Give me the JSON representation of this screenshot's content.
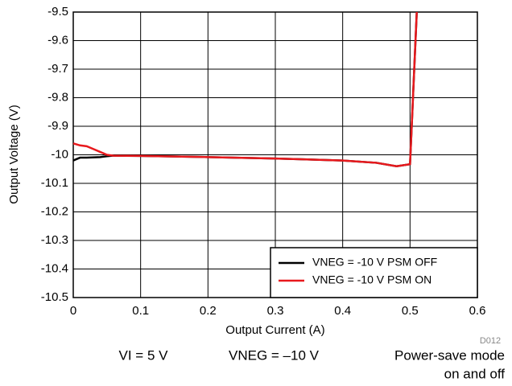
{
  "chart_data": {
    "type": "line",
    "x_label": "Output Current (A)",
    "y_label": "Output Voltage (V)",
    "xlim": [
      0,
      0.6
    ],
    "xticks": [
      0,
      0.1,
      0.2,
      0.3,
      0.4,
      0.5,
      0.6
    ],
    "ylim": [
      -10.5,
      -9.5
    ],
    "yticks": [
      -9.5,
      -9.6,
      -9.7,
      -9.8,
      -9.9,
      -10,
      -10.1,
      -10.2,
      -10.3,
      -10.4,
      -10.5
    ],
    "grid": true,
    "legend": "lower right",
    "series": [
      {
        "name": "VNEG = -10 V PSM OFF",
        "color": "#000000",
        "x": [
          0,
          0.005,
          0.01,
          0.02,
          0.04,
          0.05,
          0.06,
          0.1,
          0.2,
          0.3,
          0.4,
          0.45,
          0.48,
          0.5,
          0.51
        ],
        "values": [
          -10.02,
          -10.015,
          -10.01,
          -10.01,
          -10.008,
          -10.005,
          -10.003,
          -10.004,
          -10.008,
          -10.013,
          -10.02,
          -10.028,
          -10.04,
          -10.033,
          -9.5
        ]
      },
      {
        "name": "VNEG = -10 V PSM ON",
        "color": "#e8191d",
        "x": [
          0,
          0.01,
          0.02,
          0.03,
          0.04,
          0.05,
          0.06,
          0.1,
          0.2,
          0.3,
          0.4,
          0.45,
          0.48,
          0.5,
          0.51
        ],
        "values": [
          -9.96,
          -9.967,
          -9.97,
          -9.98,
          -9.99,
          -10.0,
          -10.003,
          -10.004,
          -10.008,
          -10.013,
          -10.02,
          -10.028,
          -10.04,
          -10.033,
          -9.5
        ]
      }
    ],
    "annotations": [
      "D012",
      "VI = 5 V",
      "VNEG = –10 V",
      "Power-save mode",
      "on and off"
    ]
  }
}
